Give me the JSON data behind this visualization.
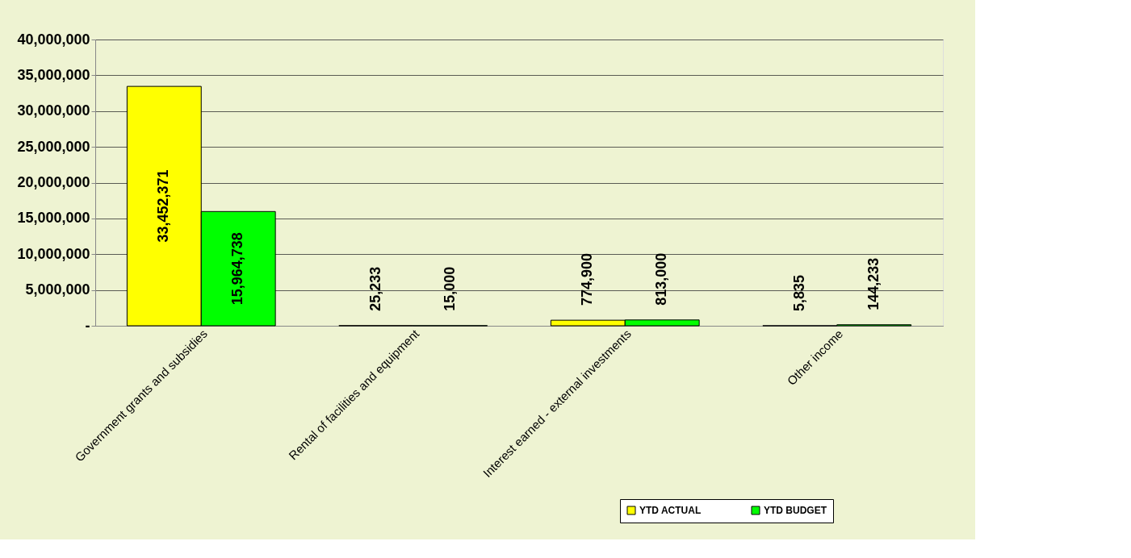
{
  "chart_data": {
    "type": "bar",
    "categories": [
      "Government grants and subsidies",
      "Rental of facilities and equipment",
      "Interest earned - external investments",
      "Other income"
    ],
    "series": [
      {
        "name": "YTD ACTUAL",
        "color": "#ffff00",
        "values": [
          33452371,
          25233,
          774900,
          5835
        ],
        "value_labels": [
          "33,452,371",
          "25,233",
          "774,900",
          "5,835"
        ]
      },
      {
        "name": "YTD BUDGET",
        "color": "#00ff00",
        "values": [
          15964738,
          15000,
          813000,
          144233
        ],
        "value_labels": [
          "15,964,738",
          "15,000",
          "813,000",
          "144,233"
        ]
      }
    ],
    "ylim": [
      0,
      40000000
    ],
    "yticks": [
      {
        "value": 0,
        "label": "-"
      },
      {
        "value": 5000000,
        "label": "5,000,000"
      },
      {
        "value": 10000000,
        "label": "10,000,000"
      },
      {
        "value": 15000000,
        "label": "15,000,000"
      },
      {
        "value": 20000000,
        "label": "20,000,000"
      },
      {
        "value": 25000000,
        "label": "25,000,000"
      },
      {
        "value": 30000000,
        "label": "30,000,000"
      },
      {
        "value": 35000000,
        "label": "35,000,000"
      },
      {
        "value": 40000000,
        "label": "40,000,000"
      }
    ],
    "grid": "y",
    "legend": "bottom right"
  }
}
